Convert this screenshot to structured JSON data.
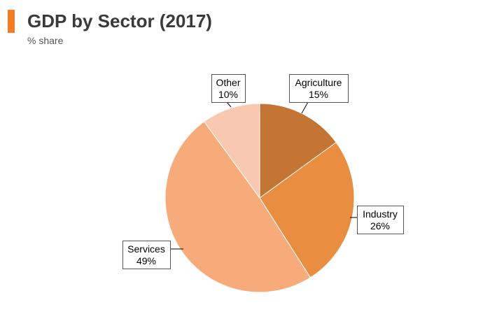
{
  "header": {
    "title": "GDP by Sector (2017)",
    "subtitle": "% share",
    "accent_color": "#f37b21"
  },
  "chart_data": {
    "type": "pie",
    "title": "GDP by Sector (2017)",
    "subtitle": "% share",
    "start_angle_deg": 0,
    "direction": "clockwise",
    "slices": [
      {
        "label": "Agriculture",
        "value": 15,
        "value_label": "15%",
        "color": "#c47433"
      },
      {
        "label": "Industry",
        "value": 26,
        "value_label": "26%",
        "color": "#e98d40"
      },
      {
        "label": "Services",
        "value": 49,
        "value_label": "49%",
        "color": "#f7ab7a"
      },
      {
        "label": "Other",
        "value": 10,
        "value_label": "10%",
        "color": "#f9c8b0"
      }
    ]
  }
}
